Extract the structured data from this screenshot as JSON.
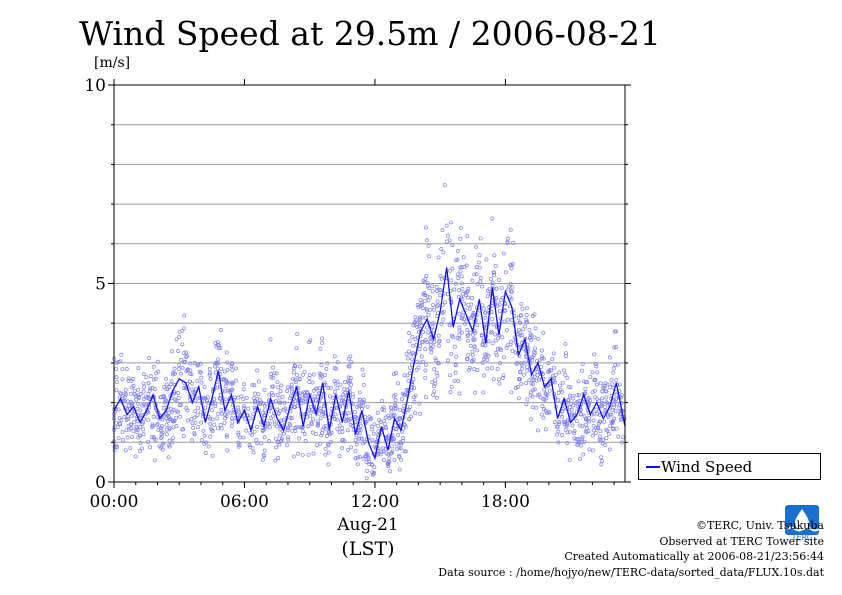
{
  "chart_data": {
    "type": "scatter",
    "title": "Wind Speed at 29.5m / 2006-08-21",
    "ylabel": "[m/s]",
    "xlabel": "(LST)",
    "date_tick": "Aug-21",
    "ylim": [
      0,
      10
    ],
    "xlim_hours": [
      0,
      23.5
    ],
    "y_ticks": [
      0,
      5,
      10
    ],
    "x_ticks": [
      {
        "hour": 0,
        "label": "00:00"
      },
      {
        "hour": 6,
        "label": "06:00"
      },
      {
        "hour": 12,
        "label": "12:00"
      },
      {
        "hour": 18,
        "label": "18:00"
      }
    ],
    "grid": "horizontal every 1 m/s",
    "legend_position": "lower-right, outside plot",
    "series": [
      {
        "name": "Wind Speed",
        "color": "#1010f0",
        "scatter_color": "#8080f0",
        "mean_line": [
          [
            0.0,
            1.8
          ],
          [
            0.3,
            2.1
          ],
          [
            0.6,
            1.7
          ],
          [
            0.9,
            1.9
          ],
          [
            1.2,
            1.5
          ],
          [
            1.5,
            1.8
          ],
          [
            1.8,
            2.2
          ],
          [
            2.1,
            1.6
          ],
          [
            2.4,
            1.8
          ],
          [
            2.7,
            2.3
          ],
          [
            3.0,
            2.6
          ],
          [
            3.3,
            2.5
          ],
          [
            3.6,
            2.0
          ],
          [
            3.9,
            2.4
          ],
          [
            4.2,
            1.5
          ],
          [
            4.5,
            2.1
          ],
          [
            4.8,
            2.8
          ],
          [
            5.1,
            1.8
          ],
          [
            5.4,
            2.2
          ],
          [
            5.7,
            1.5
          ],
          [
            6.0,
            1.8
          ],
          [
            6.3,
            1.3
          ],
          [
            6.6,
            1.9
          ],
          [
            6.9,
            1.4
          ],
          [
            7.2,
            2.1
          ],
          [
            7.5,
            1.6
          ],
          [
            7.8,
            1.3
          ],
          [
            8.1,
            1.9
          ],
          [
            8.4,
            2.4
          ],
          [
            8.7,
            1.4
          ],
          [
            9.0,
            2.2
          ],
          [
            9.3,
            1.7
          ],
          [
            9.6,
            2.5
          ],
          [
            9.9,
            1.3
          ],
          [
            10.2,
            2.2
          ],
          [
            10.5,
            1.5
          ],
          [
            10.8,
            2.3
          ],
          [
            11.1,
            1.2
          ],
          [
            11.4,
            1.8
          ],
          [
            11.7,
            1.0
          ],
          [
            12.0,
            0.6
          ],
          [
            12.3,
            1.4
          ],
          [
            12.6,
            0.8
          ],
          [
            12.9,
            1.6
          ],
          [
            13.2,
            1.3
          ],
          [
            13.5,
            2.1
          ],
          [
            13.8,
            3.0
          ],
          [
            14.1,
            3.8
          ],
          [
            14.4,
            4.1
          ],
          [
            14.7,
            3.6
          ],
          [
            15.0,
            4.3
          ],
          [
            15.3,
            5.4
          ],
          [
            15.6,
            3.9
          ],
          [
            15.9,
            4.6
          ],
          [
            16.2,
            4.2
          ],
          [
            16.5,
            3.8
          ],
          [
            16.8,
            4.6
          ],
          [
            17.1,
            3.5
          ],
          [
            17.4,
            4.9
          ],
          [
            17.7,
            3.7
          ],
          [
            18.0,
            4.8
          ],
          [
            18.3,
            4.4
          ],
          [
            18.6,
            3.2
          ],
          [
            18.9,
            3.6
          ],
          [
            19.2,
            2.7
          ],
          [
            19.5,
            3.0
          ],
          [
            19.8,
            2.4
          ],
          [
            20.1,
            2.6
          ],
          [
            20.4,
            1.6
          ],
          [
            20.7,
            2.1
          ],
          [
            21.0,
            1.5
          ],
          [
            21.3,
            1.7
          ],
          [
            21.6,
            2.2
          ],
          [
            21.9,
            1.7
          ],
          [
            22.2,
            2.0
          ],
          [
            22.5,
            1.6
          ],
          [
            22.8,
            1.9
          ],
          [
            23.1,
            2.5
          ],
          [
            23.5,
            1.4
          ]
        ]
      }
    ]
  },
  "credits": {
    "copyright": "©TERC, Univ. Tsukuba",
    "observed": "Observed at TERC Tower site",
    "created": "Created Automatically at 2006-08-21/23:56:44",
    "source": "Data source : /home/hojyo/new/TERC-data/sorted_data/FLUX.10s.dat",
    "logo_text": "TERC"
  }
}
